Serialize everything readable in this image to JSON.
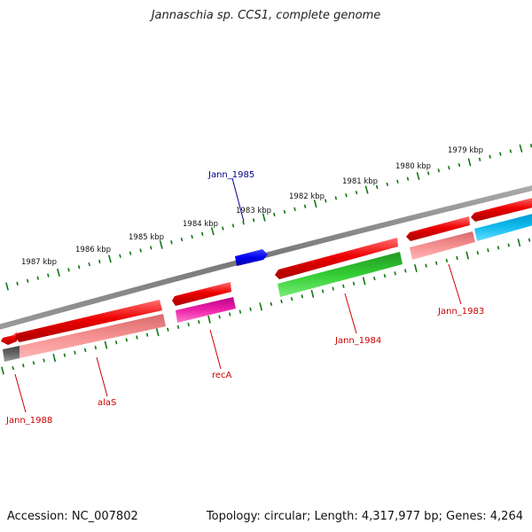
{
  "title": "Jannaschia sp. CCS1, complete genome",
  "footer": {
    "accession": "Accession: NC_007802",
    "topology": "Topology: circular; Length: 4,317,977 bp; Genes: 4,264"
  },
  "scale_labels": [
    "1987 kbp",
    "1986 kbp",
    "1985 kbp",
    "1984 kbp",
    "1983 kbp",
    "1982 kbp",
    "1981 kbp",
    "1980 kbp",
    "1979 kbp"
  ],
  "genes": [
    {
      "name": "Jann_1985",
      "color": "#00008b"
    },
    {
      "name": "Jann_1983",
      "color": "#cc0000"
    },
    {
      "name": "Jann_1984",
      "color": "#cc0000"
    },
    {
      "name": "recA",
      "color": "#cc0000"
    },
    {
      "name": "alaS",
      "color": "#cc0000"
    },
    {
      "name": "Jann_1988",
      "color": "#cc0000"
    }
  ],
  "colors": {
    "cds_red": "#ee0000",
    "rna_salmon": "#f08080",
    "green": "#33cc33",
    "magenta": "#ee22aa",
    "blue": "#0000ee",
    "cyan": "#11bbee",
    "gray": "#666666",
    "backbone": "#888888",
    "ticks": "#117711"
  }
}
